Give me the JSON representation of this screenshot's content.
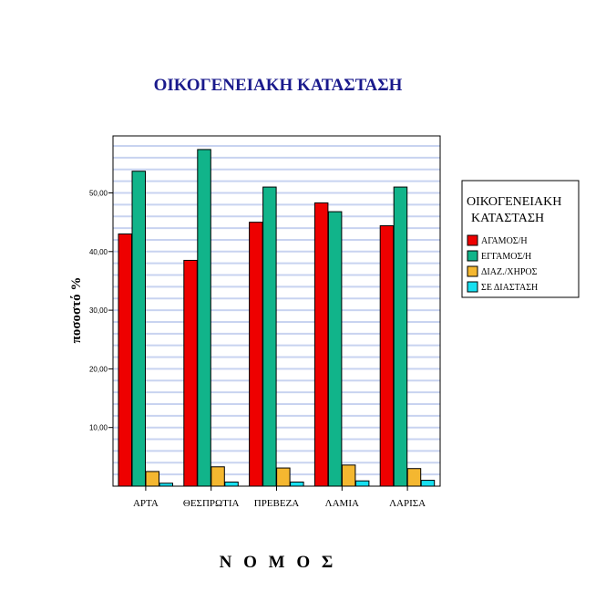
{
  "chart_data": {
    "type": "bar",
    "title": "ΟΙΚΟΓΕΝΕΙΑΚΗ ΚΑΤΑΣΤΑΣΗ",
    "xlabel": "Ν Ο Μ Ο Σ",
    "ylabel": "ποσοστό %",
    "categories": [
      "ΑΡΤΑ",
      "ΘΕΣΠΡΩΤΙΑ",
      "ΠΡΕΒΕΖΑ",
      "ΛΑΜΙΑ",
      "ΛΑΡΙΣΑ"
    ],
    "yticks": [
      "10,00",
      "20,00",
      "30,00",
      "40,00",
      "50,00"
    ],
    "ylim": [
      0,
      60
    ],
    "grid": true,
    "legend_position": "right",
    "legend_title_lines": [
      "ΟΙΚΟΓΕΝΕΙΑΚΗ",
      "ΚΑΤΑΣΤΑΣΗ"
    ],
    "series": [
      {
        "name": "ΑΓΑΜΟΣ/Η",
        "color": "#ee0000",
        "values": [
          43.0,
          38.5,
          45.0,
          48.3,
          44.4
        ]
      },
      {
        "name": "ΕΓΓΑΜΟΣ/Η",
        "color": "#11b48a",
        "values": [
          53.7,
          57.4,
          51.0,
          46.8,
          51.0
        ]
      },
      {
        "name": "ΔΙΑΖ./ΧΗΡΟΣ",
        "color": "#f4b730",
        "values": [
          2.5,
          3.3,
          3.1,
          3.6,
          3.0
        ]
      },
      {
        "name": "ΣΕ ΔΙΑΣΤΑΣΗ",
        "color": "#17e0f0",
        "values": [
          0.5,
          0.7,
          0.7,
          0.9,
          1.0
        ]
      }
    ]
  }
}
